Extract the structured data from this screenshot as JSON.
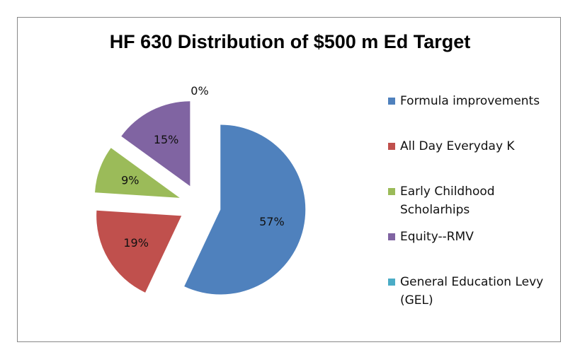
{
  "chart_data": {
    "type": "pie",
    "title": "HF 630 Distribution of $500 m Ed Target",
    "categories": [
      "Formula improvements",
      "All Day Everyday K",
      "Early Childhood Scholarhips",
      "Equity--RMV",
      "General Education Levy (GEL)"
    ],
    "values": [
      57,
      19,
      9,
      15,
      0
    ],
    "labels": [
      "57%",
      "19%",
      "9%",
      "15%",
      "0%"
    ],
    "colors": [
      "#4F81BD",
      "#C0504D",
      "#9BBB59",
      "#8064A2",
      "#4BACC6"
    ],
    "legend_position": "right",
    "exploded": true
  }
}
